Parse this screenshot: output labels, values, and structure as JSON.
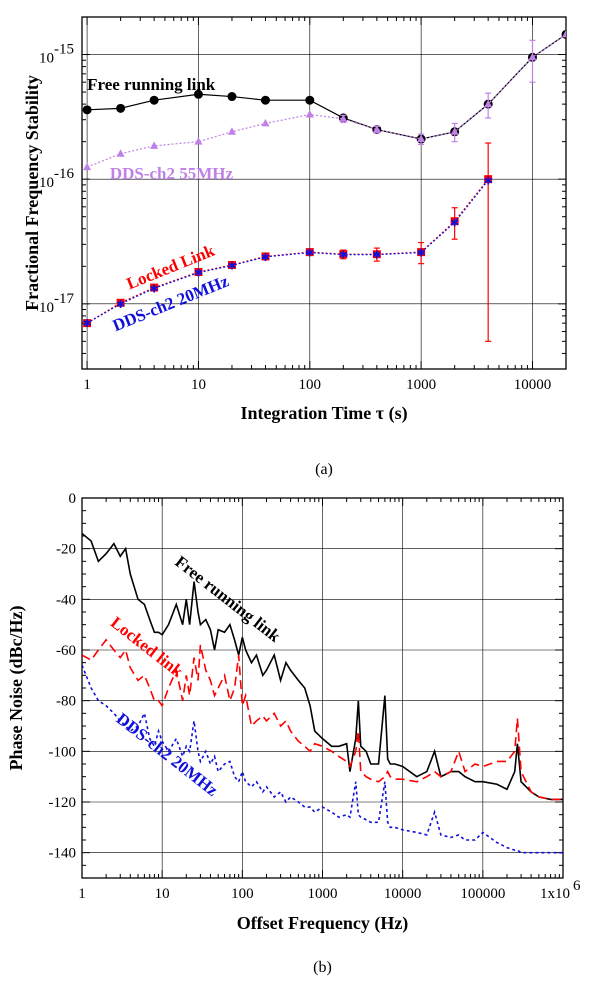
{
  "chart_data": [
    {
      "type": "line",
      "caption": "(a)",
      "xlabel": "Integration Time  τ (s)",
      "ylabel": "Fractional Frequency Stability",
      "x_scale": "log",
      "y_scale": "log",
      "xlim": [
        0.9,
        20000
      ],
      "ylim": [
        3e-18,
        2e-15
      ],
      "x_ticks": [
        1,
        10,
        100,
        1000,
        10000
      ],
      "x_tick_labels": [
        "1",
        "10",
        "100",
        "1000",
        "10000"
      ],
      "y_ticks": [
        1e-17,
        1e-16,
        1e-15
      ],
      "y_tick_labels": [
        {
          "base": "10",
          "exp": "-17"
        },
        {
          "base": "10",
          "exp": "-16"
        },
        {
          "base": "10",
          "exp": "-15"
        }
      ],
      "grid": true,
      "annotations": [
        {
          "text": "Free running link",
          "color": "#000000",
          "x": 1,
          "y": 5.2e-16,
          "rotate": 0
        },
        {
          "text": "DDS-ch2 55MHz",
          "color": "#c080e8",
          "x": 1.6,
          "y": 1e-16,
          "rotate": 0
        },
        {
          "text": "Locked Link",
          "color": "#ff0000",
          "x": 2.4,
          "y": 1.3e-17,
          "rotate": -22
        },
        {
          "text": "DDS-ch2 20MHz",
          "color": "#1010dd",
          "x": 1.8,
          "y": 6e-18,
          "rotate": -22
        }
      ],
      "series": [
        {
          "color": "#000000",
          "marker": "circle",
          "x": [
            1,
            2,
            4,
            10,
            20,
            40,
            100,
            200,
            400,
            1000,
            2000,
            4000,
            10000,
            20000
          ],
          "y": [
            3.6e-16,
            3.7e-16,
            4.3e-16,
            4.8e-16,
            4.6e-16,
            4.3e-16,
            4.3e-16,
            3.1e-16,
            2.5e-16,
            2.1e-16,
            2.4e-16,
            4e-16,
            9.5e-16,
            1.45e-15
          ]
        },
        {
          "color": "#c080e8",
          "marker": "triangle",
          "x": [
            1,
            2,
            4,
            10,
            20,
            40,
            100,
            200,
            400,
            1000,
            2000,
            4000,
            10000,
            20000
          ],
          "y": [
            1.25e-16,
            1.6e-16,
            1.85e-16,
            2e-16,
            2.4e-16,
            2.8e-16,
            3.3e-16,
            3.05e-16,
            2.5e-16,
            2.1e-16,
            2.4e-16,
            4e-16,
            9.5e-16,
            1.45e-15
          ],
          "err": [
            0,
            0,
            0,
            0,
            0,
            0,
            0,
            2e-17,
            1.5e-17,
            2e-17,
            4e-17,
            9e-17,
            3.5e-16,
            0
          ]
        },
        {
          "color": "#ff0000",
          "marker": "square",
          "x": [
            1,
            2,
            4,
            10,
            20,
            40,
            100,
            200,
            400,
            1000,
            2000,
            4000
          ],
          "y": [
            7e-18,
            1.02e-17,
            1.35e-17,
            1.8e-17,
            2.05e-17,
            2.4e-17,
            2.6e-17,
            2.5e-17,
            2.5e-17,
            2.6e-17,
            4.6e-17,
            1e-16
          ],
          "err": [
            0,
            0,
            0,
            0,
            0,
            0,
            0,
            2e-18,
            3e-18,
            5e-18,
            1.3e-17,
            9.5e-17
          ]
        },
        {
          "color": "#1010dd",
          "marker": "star",
          "x": [
            1,
            2,
            4,
            10,
            20,
            40,
            100,
            200,
            400,
            1000,
            2000,
            4000
          ],
          "y": [
            7e-18,
            1e-17,
            1.33e-17,
            1.78e-17,
            2.03e-17,
            2.38e-17,
            2.58e-17,
            2.48e-17,
            2.48e-17,
            2.58e-17,
            4.5e-17,
            9.8e-17
          ]
        }
      ]
    },
    {
      "type": "line",
      "caption": "(b)",
      "xlabel": "Offset Frequency (Hz)",
      "ylabel": "Phase Noise (dBc/Hz)",
      "x_scale": "log",
      "xlim": [
        1,
        1000000
      ],
      "ylim": [
        -150,
        0
      ],
      "x_ticks": [
        1,
        10,
        100,
        1000,
        10000,
        100000,
        1000000
      ],
      "x_tick_labels": [
        "1",
        "10",
        "100",
        "1000",
        "10000",
        "100000",
        "1x10"
      ],
      "x_tick_label_last_exp": "6",
      "y_ticks": [
        0,
        -20,
        -40,
        -60,
        -80,
        -100,
        -120,
        -140
      ],
      "y_tick_labels": [
        "0",
        "-20",
        "-40",
        "-60",
        "-80",
        "-100",
        "-120",
        "-140"
      ],
      "grid": true,
      "annotations": [
        {
          "text": "Free running link",
          "color": "#000000",
          "x": 14,
          "y": -26,
          "rotate": 38
        },
        {
          "text": "Locked link",
          "color": "#ff0000",
          "x": 2.2,
          "y": -50,
          "rotate": 38
        },
        {
          "text": "DDS-ch2 20MHz",
          "color": "#1010dd",
          "x": 2.6,
          "y": -88,
          "rotate": 38
        }
      ],
      "series": [
        {
          "color": "#000000",
          "dash": "solid",
          "x": [
            1,
            1.3,
            1.6,
            2,
            2.5,
            3,
            3.5,
            4,
            5,
            6,
            7,
            8,
            9,
            10,
            12,
            15,
            18,
            20,
            22,
            25,
            28,
            30,
            35,
            40,
            45,
            50,
            60,
            70,
            80,
            90,
            100,
            110,
            130,
            150,
            180,
            200,
            250,
            300,
            350,
            400,
            500,
            600,
            700,
            800,
            1000,
            1300,
            1600,
            2000,
            2200,
            2600,
            2800,
            3000,
            3500,
            4000,
            5000,
            6000,
            6500,
            7000,
            8000,
            10000,
            15000,
            20000,
            25000,
            30000,
            40000,
            50000,
            60000,
            80000,
            100000,
            150000,
            200000,
            250000,
            270000,
            300000,
            400000,
            500000,
            700000,
            1000000
          ],
          "y": [
            -14,
            -17,
            -25,
            -22,
            -18,
            -23,
            -20,
            -30,
            -40,
            -42,
            -48,
            -53,
            -53,
            -54,
            -50,
            -42,
            -50,
            -40,
            -50,
            -33,
            -45,
            -50,
            -48,
            -52,
            -60,
            -52,
            -53,
            -50,
            -56,
            -62,
            -55,
            -60,
            -65,
            -62,
            -70,
            -68,
            -62,
            -72,
            -65,
            -68,
            -72,
            -75,
            -82,
            -92,
            -95,
            -98,
            -98,
            -97,
            -108,
            -95,
            -80,
            -98,
            -100,
            -105,
            -105,
            -78,
            -103,
            -105,
            -105,
            -106,
            -110,
            -108,
            -100,
            -110,
            -108,
            -108,
            -110,
            -112,
            -112,
            -113,
            -115,
            -108,
            -97,
            -112,
            -116,
            -118,
            -119,
            -119
          ]
        },
        {
          "color": "#ff0000",
          "dash": "dashed",
          "x": [
            1,
            1.3,
            1.6,
            2,
            2.5,
            3,
            3.5,
            4,
            5,
            6,
            7,
            8,
            9,
            10,
            12,
            15,
            18,
            20,
            22,
            25,
            28,
            30,
            35,
            40,
            45,
            50,
            60,
            70,
            80,
            90,
            100,
            110,
            130,
            150,
            180,
            200,
            250,
            300,
            350,
            400,
            500,
            600,
            700,
            800,
            1000,
            1300,
            1600,
            2000,
            2200,
            2600,
            2800,
            3000,
            3500,
            4000,
            5000,
            6000,
            6500,
            7000,
            8000,
            10000,
            15000,
            20000,
            25000,
            30000,
            40000,
            50000,
            60000,
            80000,
            100000,
            150000,
            200000,
            250000,
            270000,
            300000,
            400000,
            500000,
            700000,
            1000000
          ],
          "y": [
            -62,
            -64,
            -60,
            -56,
            -60,
            -63,
            -60,
            -67,
            -72,
            -70,
            -75,
            -80,
            -80,
            -82,
            -75,
            -68,
            -80,
            -70,
            -78,
            -63,
            -72,
            -58,
            -68,
            -72,
            -78,
            -75,
            -70,
            -80,
            -75,
            -62,
            -82,
            -78,
            -90,
            -88,
            -86,
            -88,
            -85,
            -90,
            -88,
            -92,
            -96,
            -98,
            -100,
            -97,
            -98,
            -100,
            -102,
            -104,
            -106,
            -100,
            -92,
            -108,
            -110,
            -111,
            -112,
            -110,
            -108,
            -110,
            -111,
            -111,
            -112,
            -110,
            -108,
            -110,
            -108,
            -100,
            -108,
            -105,
            -106,
            -104,
            -104,
            -100,
            -87,
            -108,
            -116,
            -118,
            -119,
            -119
          ]
        },
        {
          "color": "#1010dd",
          "dash": "dotted",
          "x": [
            1,
            1.3,
            1.6,
            2,
            2.5,
            3,
            3.5,
            4,
            5,
            6,
            7,
            8,
            9,
            10,
            12,
            15,
            18,
            20,
            22,
            25,
            28,
            30,
            35,
            40,
            45,
            50,
            60,
            70,
            80,
            90,
            100,
            110,
            130,
            150,
            180,
            200,
            250,
            300,
            350,
            400,
            500,
            600,
            700,
            800,
            1000,
            1300,
            1600,
            2000,
            2200,
            2600,
            2800,
            3000,
            3500,
            4000,
            5000,
            6000,
            6500,
            7000,
            8000,
            10000,
            15000,
            20000,
            25000,
            30000,
            40000,
            50000,
            60000,
            80000,
            100000,
            150000,
            200000,
            250000,
            270000,
            300000,
            400000,
            500000,
            700000,
            1000000
          ],
          "y": [
            -66,
            -75,
            -80,
            -82,
            -85,
            -88,
            -90,
            -92,
            -90,
            -85,
            -95,
            -98,
            -92,
            -96,
            -100,
            -95,
            -102,
            -98,
            -100,
            -88,
            -100,
            -104,
            -100,
            -105,
            -102,
            -108,
            -105,
            -104,
            -110,
            -112,
            -108,
            -112,
            -114,
            -112,
            -116,
            -114,
            -118,
            -116,
            -120,
            -118,
            -120,
            -122,
            -122,
            -124,
            -122,
            -124,
            -126,
            -125,
            -126,
            -112,
            -125,
            -126,
            -127,
            -128,
            -128,
            -112,
            -128,
            -130,
            -130,
            -131,
            -132,
            -133,
            -124,
            -133,
            -134,
            -133,
            -135,
            -135,
            -132,
            -136,
            -138,
            -139,
            -139,
            -140,
            -140,
            -140,
            -140,
            -140
          ]
        }
      ]
    }
  ]
}
